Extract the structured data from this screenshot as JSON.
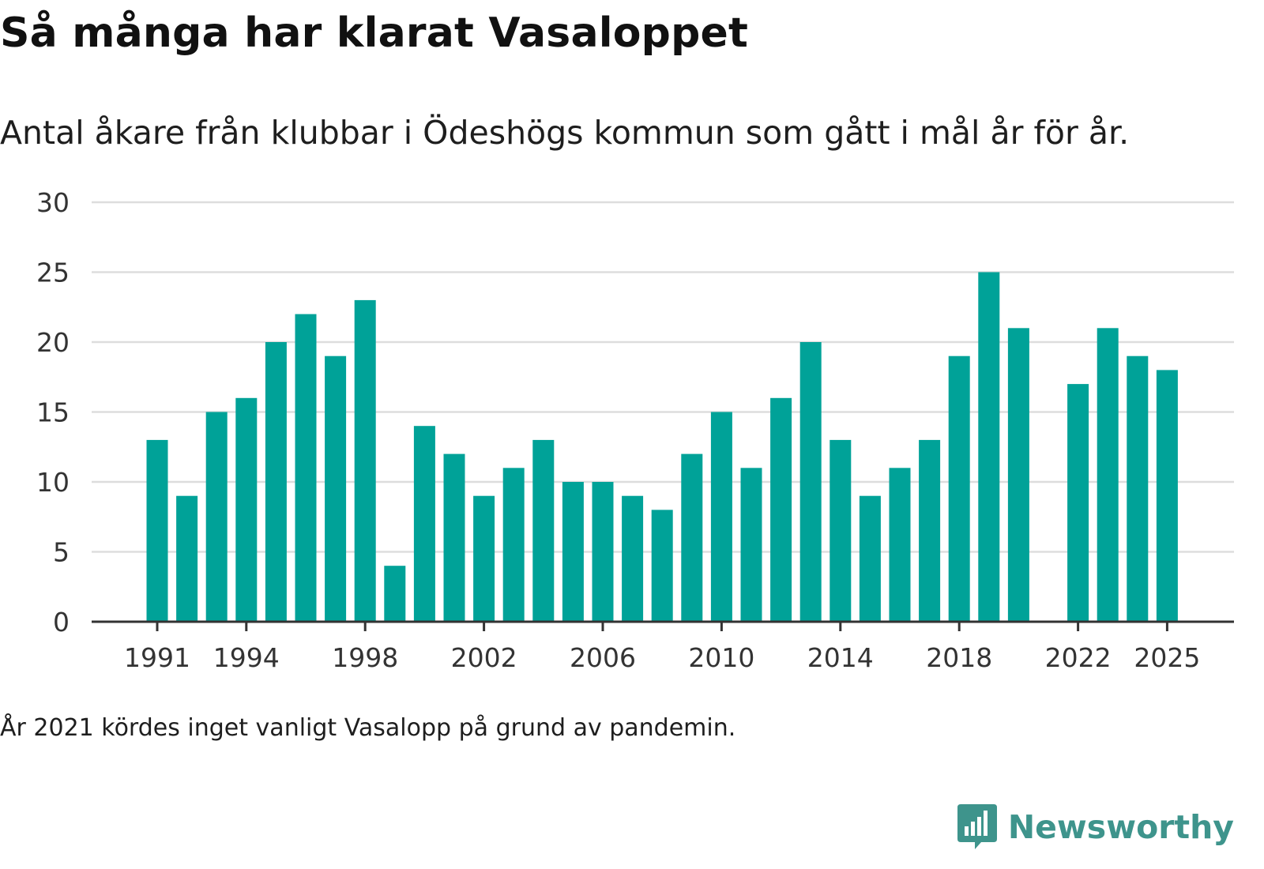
{
  "title": "Så många har klarat Vasaloppet",
  "subtitle": "Antal åkare från klubbar i Ödeshögs kommun som gått i mål år för år.",
  "note": "År 2021 kördes inget vanligt Vasalopp på grund av pandemin.",
  "brand": {
    "name": "Newsworthy",
    "icon": "newsworthy-logo-icon"
  },
  "colors": {
    "bar": "#00a298",
    "grid": "#dddddd",
    "axis": "#333333",
    "brand": "#3e948c"
  },
  "chart_data": {
    "type": "bar",
    "title": "Så många har klarat Vasaloppet",
    "xlabel": "",
    "ylabel": "",
    "ylim": [
      0,
      30
    ],
    "yticks": [
      0,
      5,
      10,
      15,
      20,
      25,
      30
    ],
    "xtick_labels": [
      1991,
      1994,
      1998,
      2002,
      2006,
      2010,
      2014,
      2018,
      2022,
      2025
    ],
    "categories": [
      1991,
      1992,
      1993,
      1994,
      1995,
      1996,
      1997,
      1998,
      1999,
      2000,
      2001,
      2002,
      2003,
      2004,
      2005,
      2006,
      2007,
      2008,
      2009,
      2010,
      2011,
      2012,
      2013,
      2014,
      2015,
      2016,
      2017,
      2018,
      2019,
      2020,
      2021,
      2022,
      2023,
      2024,
      2025
    ],
    "values": [
      13,
      9,
      15,
      16,
      20,
      22,
      19,
      23,
      4,
      14,
      12,
      9,
      11,
      13,
      10,
      10,
      9,
      8,
      12,
      15,
      11,
      16,
      20,
      13,
      9,
      11,
      13,
      19,
      25,
      21,
      null,
      17,
      21,
      19,
      18
    ],
    "grid": true
  }
}
